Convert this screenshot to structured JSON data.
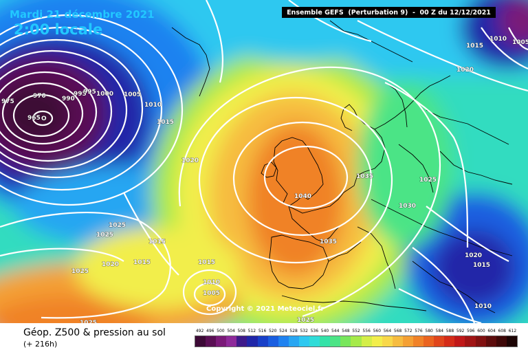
{
  "header": {
    "date": "Mardi 21 décembre 2021",
    "time": "2:00 locale",
    "run_info": "Ensemble GEFS  (Perturbation 9)  -  00 Z du 12/12/2021"
  },
  "footer": {
    "title": "Géop. Z500 & pression au sol",
    "subtitle": "(+ 216h)",
    "copyright": "Copyright © 2021 Meteociel.fr"
  },
  "scale": {
    "labels": [
      "492",
      "496",
      "500",
      "504",
      "508",
      "512",
      "516",
      "520",
      "524",
      "528",
      "532",
      "536",
      "540",
      "544",
      "548",
      "552",
      "556",
      "560",
      "564",
      "568",
      "572",
      "576",
      "580",
      "584",
      "588",
      "592",
      "596",
      "600",
      "604",
      "608",
      "612"
    ],
    "colors": [
      "#3c0a36",
      "#5a0f54",
      "#7a1a78",
      "#8e2a9a",
      "#3e1a8a",
      "#2026a8",
      "#1840c8",
      "#1a5ee0",
      "#1f82f0",
      "#28a6f2",
      "#2ec8f0",
      "#30dcd8",
      "#34e2a8",
      "#4ce486",
      "#78e65c",
      "#a6ea4a",
      "#d4ee48",
      "#f2ee4c",
      "#f8d84a",
      "#f6bc40",
      "#f4a034",
      "#f08228",
      "#ea6420",
      "#e0461c",
      "#d42c18",
      "#c01818",
      "#a01414",
      "#801010",
      "#5c0c0c",
      "#3e0808",
      "#1c0404"
    ]
  },
  "isobars": [
    {
      "label": "970"
    },
    {
      "label": "975"
    },
    {
      "label": "965"
    },
    {
      "label": "990"
    },
    {
      "label": "995"
    },
    {
      "label": "995"
    },
    {
      "label": "1000"
    },
    {
      "label": "1005"
    },
    {
      "label": "1010"
    },
    {
      "label": "1015"
    },
    {
      "label": "1020"
    },
    {
      "label": "1025"
    },
    {
      "label": "1025"
    },
    {
      "label": "1015"
    },
    {
      "label": "1020"
    },
    {
      "label": "1015"
    },
    {
      "label": "1015"
    },
    {
      "label": "1025"
    },
    {
      "label": "1010"
    },
    {
      "label": "1005"
    },
    {
      "label": "1025"
    },
    {
      "label": "1035"
    },
    {
      "label": "1040"
    },
    {
      "label": "1035"
    },
    {
      "label": "1030"
    },
    {
      "label": "1025"
    },
    {
      "label": "1020"
    },
    {
      "label": "1015"
    },
    {
      "label": "1010"
    },
    {
      "label": "1020"
    },
    {
      "label": "1015"
    },
    {
      "label": "1010"
    },
    {
      "label": "1005"
    },
    {
      "label": "1025"
    }
  ]
}
